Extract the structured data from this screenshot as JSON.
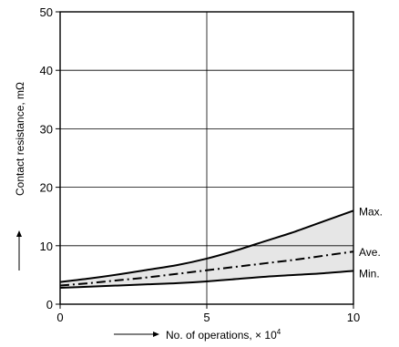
{
  "chart_data": {
    "type": "line",
    "xlabel": "No. of operations, × 10",
    "xlabel_exponent": "4",
    "ylabel": "Contact resistance, mΩ",
    "xlim": [
      0,
      10
    ],
    "ylim": [
      0,
      50
    ],
    "x_ticks": [
      "0",
      "5",
      "10"
    ],
    "y_ticks": [
      "0",
      "10",
      "20",
      "30",
      "40",
      "50"
    ],
    "x_tick_values": [
      0,
      5,
      10
    ],
    "y_tick_values": [
      0,
      10,
      20,
      30,
      40,
      50
    ],
    "grid": true,
    "shaded_band": "between Min. and Max.",
    "series": [
      {
        "name": "Max.",
        "style": "solid",
        "x": [
          0,
          1,
          2,
          3,
          4,
          5,
          6,
          7,
          8,
          9,
          10
        ],
        "y": [
          3.8,
          4.4,
          5.1,
          5.9,
          6.7,
          7.8,
          9.2,
          10.8,
          12.4,
          14.2,
          16.0
        ]
      },
      {
        "name": "Ave.",
        "style": "dash-dot",
        "x": [
          0,
          1,
          2,
          3,
          4,
          5,
          6,
          7,
          8,
          9,
          10
        ],
        "y": [
          3.2,
          3.6,
          4.1,
          4.6,
          5.2,
          5.8,
          6.4,
          7.0,
          7.6,
          8.3,
          9.0
        ]
      },
      {
        "name": "Min.",
        "style": "solid",
        "x": [
          0,
          1,
          2,
          3,
          4,
          5,
          6,
          7,
          8,
          9,
          10
        ],
        "y": [
          2.8,
          3.0,
          3.2,
          3.4,
          3.6,
          3.9,
          4.3,
          4.7,
          5.0,
          5.3,
          5.7
        ]
      }
    ]
  }
}
